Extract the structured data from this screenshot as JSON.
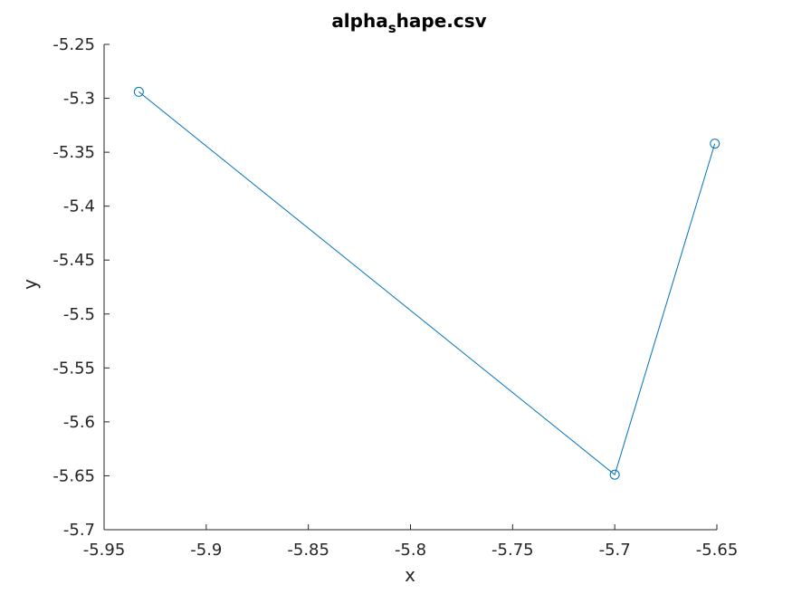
{
  "chart_data": {
    "type": "line",
    "title": {
      "main": "alpha",
      "subscript": "s",
      "rest": "hape.csv"
    },
    "xlabel": "x",
    "ylabel": "y",
    "xlim": [
      -5.95,
      -5.65
    ],
    "ylim": [
      -5.7,
      -5.25
    ],
    "xticks": [
      "-5.95",
      "-5.9",
      "-5.85",
      "-5.8",
      "-5.75",
      "-5.7",
      "-5.65"
    ],
    "yticks": [
      "-5.25",
      "-5.3",
      "-5.35",
      "-5.4",
      "-5.45",
      "-5.5",
      "-5.55",
      "-5.6",
      "-5.65",
      "-5.7"
    ],
    "grid": false,
    "series": [
      {
        "x": [
          -5.933,
          -5.7,
          -5.651
        ],
        "y": [
          -5.294,
          -5.649,
          -5.342
        ],
        "marker": "circle",
        "color": "#0072BD"
      }
    ]
  }
}
